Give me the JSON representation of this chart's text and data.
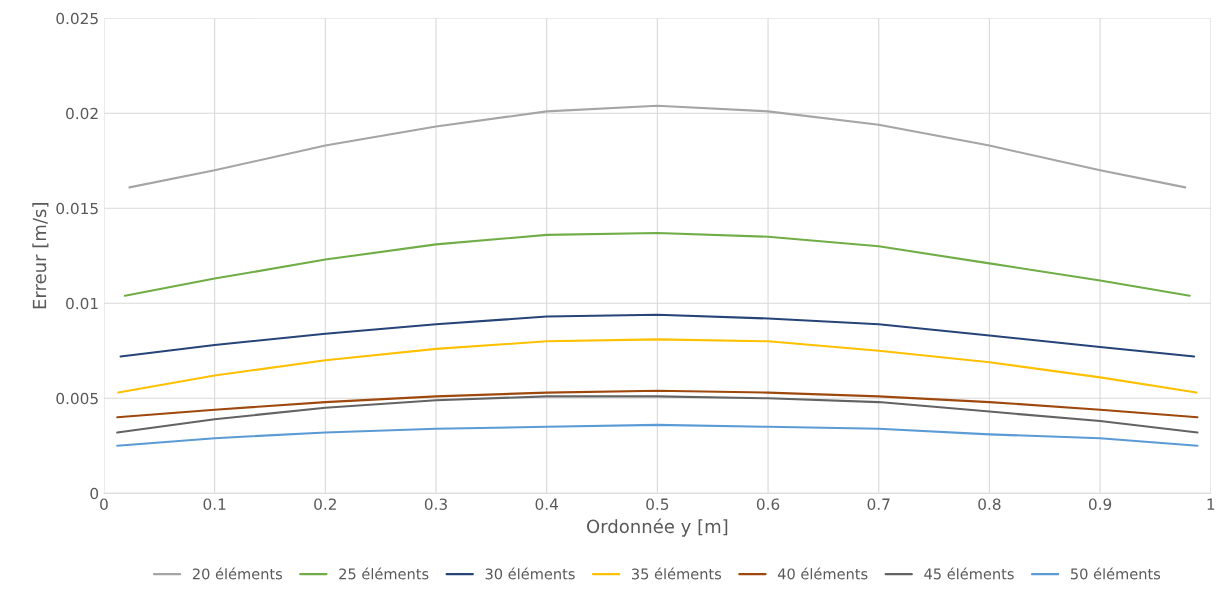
{
  "chart_data": {
    "type": "line",
    "xlabel": "Ordonnée y [m]",
    "ylabel": "Erreur [m/s]",
    "xlim": [
      0,
      1
    ],
    "xticks": [
      0,
      0.1,
      0.2,
      0.3,
      0.4,
      0.5,
      0.6,
      0.7,
      0.8,
      0.9,
      1
    ],
    "ylim": [
      0,
      0.025
    ],
    "yticks": [
      0,
      0.005,
      0.01,
      0.015,
      0.02,
      0.025
    ],
    "grid": true,
    "legend": "bottom",
    "marker": "none",
    "line_style": "solid",
    "series": [
      {
        "name": "20 éléments",
        "color": "#a5a5a5",
        "x": [
          0.023,
          0.1,
          0.2,
          0.3,
          0.4,
          0.5,
          0.6,
          0.7,
          0.8,
          0.9,
          0.977
        ],
        "values": [
          0.0161,
          0.017,
          0.0183,
          0.0193,
          0.0201,
          0.0204,
          0.0201,
          0.0194,
          0.0183,
          0.017,
          0.0161
        ]
      },
      {
        "name": "25 éléments",
        "color": "#70ad47",
        "x": [
          0.019,
          0.1,
          0.2,
          0.3,
          0.4,
          0.5,
          0.6,
          0.7,
          0.8,
          0.9,
          0.981
        ],
        "values": [
          0.0104,
          0.0113,
          0.0123,
          0.0131,
          0.0136,
          0.0137,
          0.0135,
          0.013,
          0.0121,
          0.0112,
          0.0104
        ]
      },
      {
        "name": "30 éléments",
        "color": "#264478",
        "x": [
          0.015,
          0.1,
          0.2,
          0.3,
          0.4,
          0.5,
          0.6,
          0.7,
          0.8,
          0.9,
          0.985
        ],
        "values": [
          0.0072,
          0.0078,
          0.0084,
          0.0089,
          0.0093,
          0.0094,
          0.0092,
          0.0089,
          0.0083,
          0.0077,
          0.0072
        ]
      },
      {
        "name": "35 éléments",
        "color": "#ffc000",
        "x": [
          0.013,
          0.1,
          0.2,
          0.3,
          0.4,
          0.5,
          0.6,
          0.7,
          0.8,
          0.9,
          0.987
        ],
        "values": [
          0.0053,
          0.0062,
          0.007,
          0.0076,
          0.008,
          0.0081,
          0.008,
          0.0075,
          0.0069,
          0.0061,
          0.0053
        ]
      },
      {
        "name": "40 éléments",
        "color": "#9e480e",
        "x": [
          0.012,
          0.1,
          0.2,
          0.3,
          0.4,
          0.5,
          0.6,
          0.7,
          0.8,
          0.9,
          0.988
        ],
        "values": [
          0.004,
          0.0044,
          0.0048,
          0.0051,
          0.0053,
          0.0054,
          0.0053,
          0.0051,
          0.0048,
          0.0044,
          0.004
        ]
      },
      {
        "name": "45 éléments",
        "color": "#636363",
        "x": [
          0.012,
          0.1,
          0.2,
          0.3,
          0.4,
          0.5,
          0.6,
          0.7,
          0.8,
          0.9,
          0.988
        ],
        "values": [
          0.0032,
          0.0039,
          0.0045,
          0.0049,
          0.0051,
          0.0051,
          0.005,
          0.0048,
          0.0043,
          0.0038,
          0.0032
        ]
      },
      {
        "name": "50 éléments",
        "color": "#5b9bd5",
        "x": [
          0.012,
          0.1,
          0.2,
          0.3,
          0.4,
          0.5,
          0.6,
          0.7,
          0.8,
          0.9,
          0.988
        ],
        "values": [
          0.0025,
          0.0029,
          0.0032,
          0.0034,
          0.0035,
          0.0036,
          0.0035,
          0.0034,
          0.0031,
          0.0029,
          0.0025
        ]
      }
    ]
  }
}
